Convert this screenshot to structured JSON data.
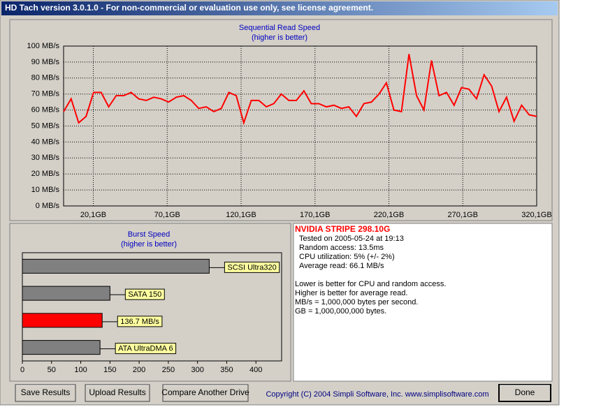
{
  "window": {
    "title": "HD Tach version 3.0.1.0  - For non-commercial or evaluation use only, see license agreement."
  },
  "chart_data": [
    {
      "type": "line",
      "title": "Sequential Read Speed",
      "subtitle": "(higher is better)",
      "x": [
        0,
        5.1,
        10.2,
        15.2,
        20.3,
        25.4,
        30.5,
        35.6,
        40.6,
        45.7,
        50.8,
        55.9,
        61,
        66,
        71.1,
        76.2,
        81.3,
        86.4,
        91.4,
        96.5,
        101.6,
        106.7,
        111.8,
        116.8,
        121.9,
        127,
        132.1,
        137.2,
        142.2,
        147.3,
        152.4,
        157.5,
        162.6,
        167.6,
        172.7,
        177.8,
        182.9,
        188,
        193,
        198.1,
        203.2,
        208.3,
        213.4,
        218.4,
        223.5,
        228.6,
        233.7,
        238.8,
        243.8,
        248.9,
        254,
        259.1,
        264.2,
        269.2,
        274.3,
        279.4,
        284.5,
        289.6,
        294.6,
        299.7,
        304.8,
        309.9,
        315,
        320.1
      ],
      "series": [
        {
          "color": "#ff0000",
          "values": [
            59,
            67,
            52,
            56,
            71,
            71,
            62,
            69,
            69,
            71,
            67,
            66,
            68,
            67,
            65,
            68,
            69,
            66,
            61,
            62,
            59,
            61,
            71,
            69,
            52,
            66,
            66,
            62,
            64,
            70,
            66,
            66,
            72,
            64,
            64,
            62,
            63,
            61,
            62,
            56,
            64,
            65,
            70,
            77,
            60,
            59,
            95,
            69,
            60,
            91,
            69,
            71,
            63,
            74,
            73,
            67,
            82,
            75,
            59,
            68,
            53,
            63,
            57,
            56
          ]
        }
      ],
      "xlim": [
        0,
        320.1
      ],
      "xticks": [
        {
          "value": 20.1,
          "label": "20,1GB"
        },
        {
          "value": 70.1,
          "label": "70,1GB"
        },
        {
          "value": 120.1,
          "label": "120,1GB"
        },
        {
          "value": 170.1,
          "label": "170,1GB"
        },
        {
          "value": 220.1,
          "label": "220,1GB"
        },
        {
          "value": 270.1,
          "label": "270,1GB"
        },
        {
          "value": 320.1,
          "label": "320,1GB"
        }
      ],
      "ylim": [
        0,
        100
      ],
      "yticks": [
        {
          "value": 0,
          "label": "0 MB/s"
        },
        {
          "value": 10,
          "label": "10 MB/s"
        },
        {
          "value": 20,
          "label": "20 MB/s"
        },
        {
          "value": 30,
          "label": "30 MB/s"
        },
        {
          "value": 40,
          "label": "40 MB/s"
        },
        {
          "value": 50,
          "label": "50 MB/s"
        },
        {
          "value": 60,
          "label": "60 MB/s"
        },
        {
          "value": 70,
          "label": "70 MB/s"
        },
        {
          "value": 80,
          "label": "80 MB/s"
        },
        {
          "value": 90,
          "label": "90 MB/s"
        },
        {
          "value": 100,
          "label": "100 MB/s"
        }
      ],
      "grid": true
    },
    {
      "type": "bar",
      "orientation": "horizontal",
      "title": "Burst Speed",
      "subtitle": "(higher is better)",
      "categories": [
        "SCSI Ultra320",
        "SATA 150",
        null,
        "ATA UltraDMA 6"
      ],
      "values": [
        320,
        150,
        136.7,
        133
      ],
      "value_labels": [
        null,
        null,
        "136.7 MB/s",
        null
      ],
      "colors": [
        "#808080",
        "#808080",
        "#ff0000",
        "#808080"
      ],
      "xlim": [
        0,
        444
      ],
      "xticks": [
        0,
        50,
        100,
        150,
        200,
        250,
        300,
        350,
        400
      ],
      "grid": false
    }
  ],
  "info": {
    "heading": "NVIDIA STRIPE  298.10G",
    "lines": [
      "Tested on 2005-05-24 at 19:13",
      "Random access: 13.5ms",
      "CPU utilization: 5% (+/- 2%)",
      "Average read: 66.1 MB/s"
    ],
    "notes": [
      "Lower is better for CPU and random access.",
      "Higher is better for average read.",
      "MB/s = 1,000,000 bytes per second.",
      "GB = 1,000,000,000 bytes."
    ]
  },
  "buttons": [
    "Save Results",
    "Upload Results",
    "Compare Another Drive",
    "Done"
  ],
  "copyright": "Copyright (C) 2004 Simpli Software, Inc. www.simplisoftware.com"
}
